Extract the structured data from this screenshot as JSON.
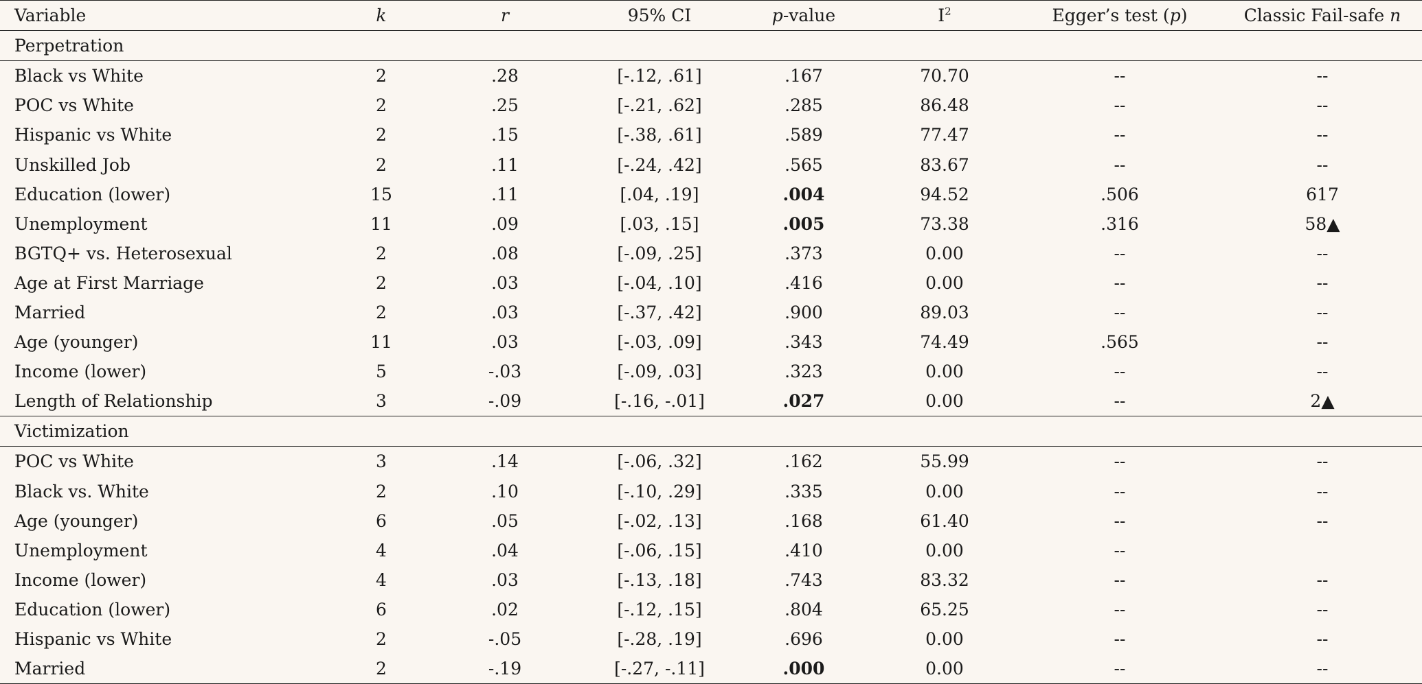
{
  "headers": {
    "variable": "Variable",
    "k": "k",
    "r": "r",
    "ci": "95% CI",
    "p_italic": "p",
    "p_rest": "-value",
    "i2_base": "I",
    "i2_sup": "2",
    "egger_pre": "Egger’s test (",
    "egger_p": "p",
    "egger_post": ")",
    "failsafe_pre": "Classic Fail-safe ",
    "failsafe_n": "n"
  },
  "sections": [
    {
      "title": "Perpetration",
      "rows": [
        {
          "variable": "Black vs White",
          "k": "2",
          "r": ".28",
          "ci": "[-.12, .61]",
          "p": ".167",
          "p_bold": false,
          "i2": "70.70",
          "egger": "--",
          "failsafe": "--"
        },
        {
          "variable": "POC vs White",
          "k": "2",
          "r": ".25",
          "ci": "[-.21, .62]",
          "p": ".285",
          "p_bold": false,
          "i2": "86.48",
          "egger": "--",
          "failsafe": "--"
        },
        {
          "variable": "Hispanic vs White",
          "k": "2",
          "r": ".15",
          "ci": "[-.38, .61]",
          "p": ".589",
          "p_bold": false,
          "i2": "77.47",
          "egger": "--",
          "failsafe": "--"
        },
        {
          "variable": "Unskilled Job",
          "k": "2",
          "r": ".11",
          "ci": "[-.24, .42]",
          "p": ".565",
          "p_bold": false,
          "i2": "83.67",
          "egger": "--",
          "failsafe": "--"
        },
        {
          "variable": "Education (lower)",
          "k": "15",
          "r": ".11",
          "ci": "[.04, .19]",
          "p": ".004",
          "p_bold": true,
          "i2": "94.52",
          "egger": ".506",
          "failsafe": "617"
        },
        {
          "variable": "Unemployment",
          "k": "11",
          "r": ".09",
          "ci": "[.03, .15]",
          "p": ".005",
          "p_bold": true,
          "i2": "73.38",
          "egger": ".316",
          "failsafe": "58▲"
        },
        {
          "variable": "BGTQ+ vs. Heterosexual",
          "k": "2",
          "r": ".08",
          "ci": "[-.09, .25]",
          "p": ".373",
          "p_bold": false,
          "i2": "0.00",
          "egger": "--",
          "failsafe": "--"
        },
        {
          "variable": "Age at First Marriage",
          "k": "2",
          "r": ".03",
          "ci": "[-.04, .10]",
          "p": ".416",
          "p_bold": false,
          "i2": "0.00",
          "egger": "--",
          "failsafe": "--"
        },
        {
          "variable": "Married",
          "k": "2",
          "r": ".03",
          "ci": "[-.37, .42]",
          "p": ".900",
          "p_bold": false,
          "i2": "89.03",
          "egger": "--",
          "failsafe": "--"
        },
        {
          "variable": "Age (younger)",
          "k": "11",
          "r": ".03",
          "ci": "[-.03, .09]",
          "p": ".343",
          "p_bold": false,
          "i2": "74.49",
          "egger": ".565",
          "failsafe": "--"
        },
        {
          "variable": "Income (lower)",
          "k": "5",
          "r": "-.03",
          "ci": "[-.09, .03]",
          "p": ".323",
          "p_bold": false,
          "i2": "0.00",
          "egger": "--",
          "failsafe": "--"
        },
        {
          "variable": "Length of Relationship",
          "k": "3",
          "r": "-.09",
          "ci": "[-.16, -.01]",
          "p": ".027",
          "p_bold": true,
          "i2": "0.00",
          "egger": "--",
          "failsafe": "2▲"
        }
      ]
    },
    {
      "title": "Victimization",
      "rows": [
        {
          "variable": "POC vs White",
          "k": "3",
          "r": ".14",
          "ci": "[-.06, .32]",
          "p": ".162",
          "p_bold": false,
          "i2": "55.99",
          "egger": "--",
          "failsafe": "--"
        },
        {
          "variable": "Black vs. White",
          "k": "2",
          "r": ".10",
          "ci": "[-.10, .29]",
          "p": ".335",
          "p_bold": false,
          "i2": "0.00",
          "egger": "--",
          "failsafe": "--"
        },
        {
          "variable": "Age (younger)",
          "k": "6",
          "r": ".05",
          "ci": "[-.02, .13]",
          "p": ".168",
          "p_bold": false,
          "i2": "61.40",
          "egger": "--",
          "failsafe": "--"
        },
        {
          "variable": "Unemployment",
          "k": "4",
          "r": ".04",
          "ci": "[-.06, .15]",
          "p": ".410",
          "p_bold": false,
          "i2": "0.00",
          "egger": "--",
          "failsafe": ""
        },
        {
          "variable": "Income (lower)",
          "k": "4",
          "r": ".03",
          "ci": "[-.13, .18]",
          "p": ".743",
          "p_bold": false,
          "i2": "83.32",
          "egger": "--",
          "failsafe": "--"
        },
        {
          "variable": "Education (lower)",
          "k": "6",
          "r": ".02",
          "ci": "[-.12, .15]",
          "p": ".804",
          "p_bold": false,
          "i2": "65.25",
          "egger": "--",
          "failsafe": "--"
        },
        {
          "variable": "Hispanic vs White",
          "k": "2",
          "r": "-.05",
          "ci": "[-.28, .19]",
          "p": ".696",
          "p_bold": false,
          "i2": "0.00",
          "egger": "--",
          "failsafe": "--"
        },
        {
          "variable": "Married",
          "k": "2",
          "r": "-.19",
          "ci": "[-.27, -.11]",
          "p": ".000",
          "p_bold": true,
          "i2": "0.00",
          "egger": "--",
          "failsafe": "--"
        }
      ]
    }
  ]
}
